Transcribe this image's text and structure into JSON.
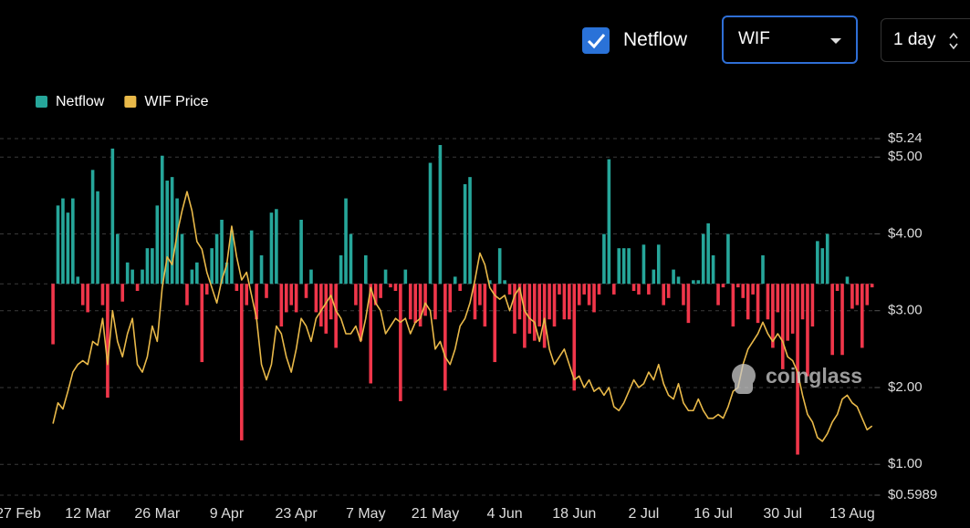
{
  "controls": {
    "checkbox_label": "Netflow",
    "asset": "WIF",
    "interval": "1 day"
  },
  "watermark": "coinglass",
  "chart_data": {
    "type": "bar",
    "legend": "top-left",
    "grid": true,
    "categories": [
      "27 Feb",
      null,
      null,
      null,
      null,
      null,
      null,
      null,
      null,
      null,
      null,
      null,
      null,
      null,
      "12 Mar",
      null,
      null,
      null,
      null,
      null,
      null,
      null,
      null,
      null,
      null,
      null,
      null,
      null,
      "26 Mar",
      null,
      null,
      null,
      null,
      null,
      null,
      null,
      null,
      null,
      null,
      null,
      null,
      null,
      "9 Apr",
      null,
      null,
      null,
      null,
      null,
      null,
      null,
      null,
      null,
      null,
      null,
      null,
      null,
      "23 Apr",
      null,
      null,
      null,
      null,
      null,
      null,
      null,
      null,
      null,
      null,
      null,
      null,
      null,
      "7 May",
      null,
      null,
      null,
      null,
      null,
      null,
      null,
      null,
      null,
      null,
      null,
      null,
      null,
      "21 May",
      null,
      null,
      null,
      null,
      null,
      null,
      null,
      null,
      null,
      null,
      null,
      null,
      null,
      "4 Jun",
      null,
      null,
      null,
      null,
      null,
      null,
      null,
      null,
      null,
      null,
      null,
      null,
      null,
      "18 Jun",
      null,
      null,
      null,
      null,
      null,
      null,
      null,
      null,
      null,
      null,
      null,
      null,
      null,
      "2 Jul",
      null,
      null,
      null,
      null,
      null,
      null,
      null,
      null,
      null,
      null,
      null,
      null,
      null,
      "16 Jul",
      null,
      null,
      null,
      null,
      null,
      null,
      null,
      null,
      null,
      null,
      null,
      null,
      null,
      "30 Jul",
      null,
      null,
      null,
      null,
      null,
      null,
      null,
      null,
      null,
      null,
      null,
      null,
      null,
      "13 Aug",
      null,
      null,
      null,
      null
    ],
    "ylim": [
      -2.97,
      2.04
    ],
    "y2lim": [
      0.5989,
      5.24
    ],
    "y2ticks": [
      {
        "value": 0.5989,
        "label": "$0.5989"
      },
      {
        "value": 1,
        "label": "$1.00"
      },
      {
        "value": 2,
        "label": "$2.00"
      },
      {
        "value": 3,
        "label": "$3.00"
      },
      {
        "value": 4,
        "label": "$4.00"
      },
      {
        "value": 5,
        "label": "$5.00"
      },
      {
        "value": 5.24,
        "label": "$5.24"
      }
    ],
    "series": [
      {
        "name": "Netflow",
        "type": "bar",
        "color": "#26a69a",
        "negative_color": "#f0364a",
        "values": [
          null,
          null,
          null,
          null,
          null,
          null,
          null,
          -0.85,
          1.1,
          1.2,
          1.0,
          1.2,
          0.1,
          -0.3,
          -0.4,
          1.6,
          1.3,
          -0.3,
          -1.6,
          1.9,
          0.7,
          -0.25,
          0.3,
          0.2,
          -0.1,
          0.2,
          0.5,
          0.5,
          1.1,
          1.8,
          1.45,
          1.5,
          1.2,
          0.7,
          -0.3,
          0.2,
          0.3,
          -1.1,
          -0.15,
          0.5,
          0.7,
          0.9,
          0.3,
          0.75,
          -0.1,
          -2.2,
          -0.3,
          0.75,
          -0.5,
          0.4,
          -0.2,
          1.0,
          1.05,
          -0.6,
          -0.4,
          -0.3,
          -0.4,
          0.9,
          -0.2,
          0.2,
          -0.4,
          -0.6,
          -0.7,
          -0.5,
          -0.9,
          0.4,
          1.2,
          0.7,
          -0.3,
          -0.8,
          0.4,
          -1.4,
          -0.3,
          -0.2,
          0.2,
          -0.05,
          -0.1,
          -1.65,
          0.2,
          -0.5,
          -0.55,
          -0.6,
          -0.45,
          1.7,
          -0.5,
          1.95,
          -1.5,
          -0.4,
          0.1,
          -0.1,
          1.4,
          1.5,
          -0.5,
          -0.3,
          -0.6,
          0.05,
          -1.1,
          0.5,
          0.05,
          -0.15,
          -0.7,
          -0.5,
          -0.9,
          -0.7,
          -0.8,
          -0.6,
          -0.9,
          -0.5,
          -0.6,
          -0.15,
          -0.5,
          -0.5,
          -1.5,
          -0.3,
          -0.15,
          -0.3,
          -0.4,
          -0.15,
          0.7,
          1.75,
          -0.15,
          0.5,
          0.5,
          0.5,
          -0.1,
          -0.15,
          0.55,
          -0.15,
          0.2,
          0.55,
          -0.3,
          -0.2,
          0.2,
          0.1,
          -0.3,
          -0.55,
          0.05,
          0.05,
          0.7,
          0.85,
          0.4,
          -0.3,
          -0.05,
          0.7,
          -0.6,
          -0.05,
          -0.2,
          -0.5,
          -0.15,
          -0.55,
          0.4,
          -0.5,
          -0.9,
          -0.4,
          -1.2,
          -0.8,
          -0.7,
          -2.4,
          -0.5,
          -1.3,
          -0.6,
          0.6,
          0.5,
          0.7,
          -1.0,
          -0.1,
          -1.0,
          0.1,
          -0.35,
          -0.3,
          -0.9,
          -0.3,
          -0.05
        ]
      },
      {
        "name": "WIF Price",
        "type": "line",
        "axis": "y2",
        "color": "#e9b949",
        "values": [
          null,
          null,
          null,
          null,
          null,
          null,
          null,
          1.53,
          1.8,
          1.72,
          1.95,
          2.2,
          2.3,
          2.35,
          2.3,
          2.6,
          2.55,
          2.9,
          2.3,
          3.0,
          2.6,
          2.4,
          2.7,
          2.9,
          2.3,
          2.2,
          2.4,
          2.8,
          2.6,
          3.3,
          3.7,
          3.6,
          4.0,
          4.3,
          4.55,
          4.3,
          3.9,
          3.8,
          3.5,
          3.3,
          3.1,
          3.4,
          3.6,
          4.1,
          3.7,
          3.4,
          3.5,
          3.2,
          2.9,
          2.3,
          2.1,
          2.3,
          2.8,
          2.7,
          2.4,
          2.2,
          2.5,
          2.9,
          2.8,
          2.6,
          2.9,
          3.0,
          3.1,
          3.2,
          3.0,
          2.9,
          2.7,
          2.7,
          2.8,
          2.6,
          2.9,
          3.3,
          3.1,
          3.0,
          2.7,
          2.8,
          2.9,
          2.85,
          2.9,
          2.7,
          2.85,
          2.9,
          3.1,
          3.0,
          2.5,
          2.6,
          2.4,
          2.3,
          2.5,
          2.8,
          2.9,
          3.1,
          3.4,
          3.75,
          3.6,
          3.3,
          3.2,
          3.15,
          3.2,
          3.0,
          3.2,
          3.3,
          3.0,
          2.9,
          2.85,
          2.6,
          2.9,
          2.5,
          2.3,
          2.4,
          2.5,
          2.3,
          2.1,
          2.15,
          2.0,
          2.1,
          1.95,
          2.0,
          1.9,
          2.0,
          1.75,
          1.7,
          1.8,
          1.95,
          2.1,
          2.0,
          2.05,
          2.2,
          2.1,
          2.3,
          2.05,
          1.9,
          1.85,
          2.05,
          1.8,
          1.7,
          1.7,
          1.85,
          1.7,
          1.6,
          1.6,
          1.65,
          1.6,
          1.75,
          1.95,
          2.0,
          2.3,
          2.5,
          2.6,
          2.7,
          2.85,
          2.7,
          2.6,
          2.7,
          2.6,
          2.4,
          2.35,
          2.2,
          1.9,
          1.65,
          1.55,
          1.35,
          1.3,
          1.4,
          1.55,
          1.65,
          1.85,
          1.9,
          1.8,
          1.75,
          1.6,
          1.45,
          1.5
        ]
      }
    ]
  }
}
